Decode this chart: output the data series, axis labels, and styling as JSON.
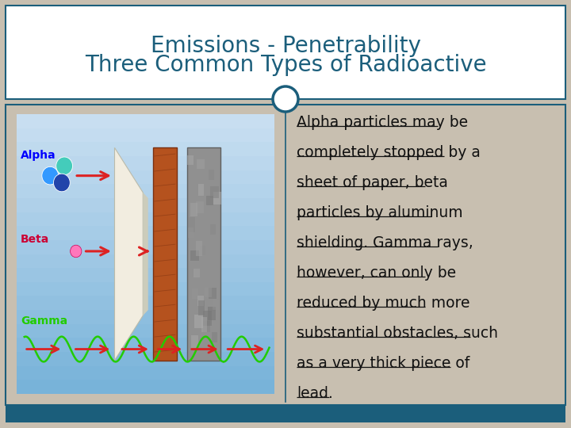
{
  "title_line1": "Three Common Types of Radioactive",
  "title_line2": "Emissions - Penetrability",
  "title_color": "#1b5e7b",
  "title_fontsize": 20,
  "bg_color": "#c8bfb0",
  "header_bg": "#ffffff",
  "body_bg": "#c8bfb0",
  "border_color": "#1b5e7b",
  "bottom_bar_color": "#1b5e7b",
  "text_color": "#111111",
  "text_fontsize": 13.5,
  "circle_color": "#1b5e7b",
  "circle_fill": "#ffffff",
  "lines": [
    "Alpha particles may be",
    "completely stopped by a",
    "sheet of paper, beta",
    "particles by aluminum",
    "shielding. Gamma rays,",
    "however, can only be",
    "reduced by much more",
    "substantial obstacles, such",
    "as a very thick piece of",
    "lead."
  ],
  "img_bg_color": "#7fc8e8",
  "img_bg_color2": "#b8dff0",
  "paper_color": "#f0ede0",
  "wood_color": "#b5521e",
  "wood_dark": "#7a3010",
  "concrete_color": "#959595",
  "concrete_dark": "#6a6a6a",
  "alpha_color": "blue",
  "beta_color": "#cc0033",
  "gamma_color": "#22cc00",
  "arrow_color": "#dd2222",
  "sphere1": "#3399ff",
  "sphere2": "#44ccbb",
  "sphere3": "#2244aa",
  "beta_sphere": "#ff77bb"
}
